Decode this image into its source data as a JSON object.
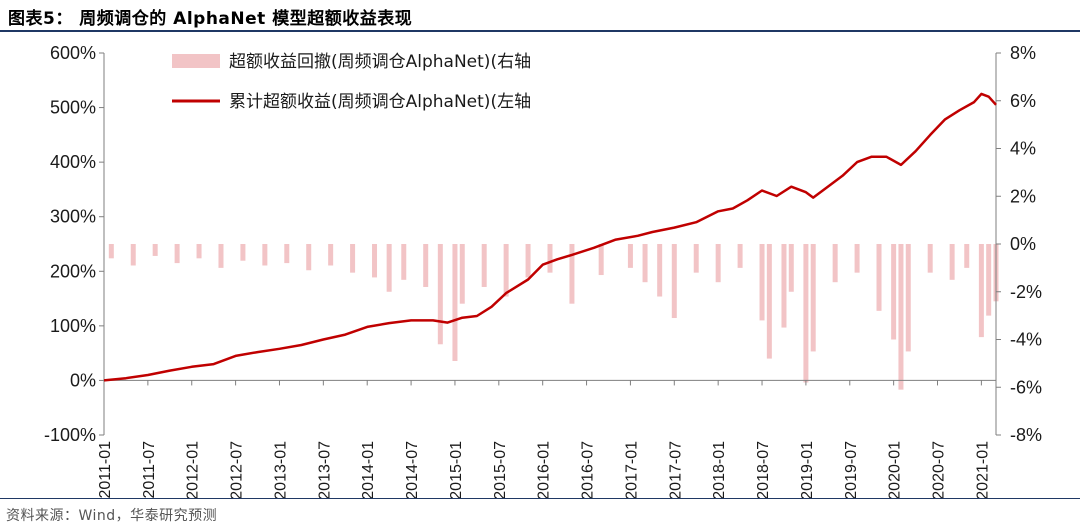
{
  "figure": {
    "title": "图表5：  周频调仓的 AlphaNet 模型超额收益表现",
    "source": "资料来源：Wind，华泰研究预测"
  },
  "colors": {
    "cumulative_line": "#c00000",
    "drawdown_bars": "#f2c4c6",
    "rules": "#1f3864"
  },
  "chart_data": {
    "type": "line",
    "left_axis": {
      "ylim": [
        -100,
        600
      ],
      "ticks": [
        -100,
        0,
        100,
        200,
        300,
        400,
        500,
        600
      ],
      "tick_labels": [
        "-100%",
        "0%",
        "100%",
        "200%",
        "300%",
        "400%",
        "500%",
        "600%"
      ]
    },
    "right_axis": {
      "ylim": [
        -8,
        8
      ],
      "ticks": [
        -8,
        -6,
        -4,
        -2,
        0,
        2,
        4,
        6,
        8
      ],
      "tick_labels": [
        "-8%",
        "-6%",
        "-4%",
        "-2%",
        "0%",
        "2%",
        "4%",
        "6%",
        "8%"
      ]
    },
    "x_ticks": [
      "2011-01",
      "2011-07",
      "2012-01",
      "2012-07",
      "2013-01",
      "2013-07",
      "2014-01",
      "2014-07",
      "2015-01",
      "2015-07",
      "2016-01",
      "2016-07",
      "2017-01",
      "2017-07",
      "2018-01",
      "2018-07",
      "2019-01",
      "2019-07",
      "2020-01",
      "2020-07",
      "2021-01"
    ],
    "x_range": [
      "2011-01",
      "2021-03"
    ],
    "legend": [
      "超额收益回撤(周频调仓AlphaNet)(右轴",
      "累计超额收益(周频调仓AlphaNet)(左轴"
    ],
    "legend_position": "top-left",
    "grid": false,
    "series": [
      {
        "name": "累计超额收益(周频调仓AlphaNet)(左轴",
        "axis": "left",
        "kind": "line",
        "points": [
          [
            "2011-01",
            0
          ],
          [
            "2011-04",
            4
          ],
          [
            "2011-07",
            10
          ],
          [
            "2011-10",
            18
          ],
          [
            "2012-01",
            25
          ],
          [
            "2012-04",
            30
          ],
          [
            "2012-07",
            45
          ],
          [
            "2012-10",
            52
          ],
          [
            "2013-01",
            58
          ],
          [
            "2013-04",
            65
          ],
          [
            "2013-07",
            75
          ],
          [
            "2013-10",
            84
          ],
          [
            "2014-01",
            98
          ],
          [
            "2014-04",
            105
          ],
          [
            "2014-07",
            110
          ],
          [
            "2014-10",
            110
          ],
          [
            "2014-12",
            106
          ],
          [
            "2015-02",
            115
          ],
          [
            "2015-04",
            118
          ],
          [
            "2015-06",
            135
          ],
          [
            "2015-08",
            160
          ],
          [
            "2015-11",
            185
          ],
          [
            "2016-01",
            212
          ],
          [
            "2016-03",
            222
          ],
          [
            "2016-05",
            230
          ],
          [
            "2016-08",
            243
          ],
          [
            "2016-11",
            258
          ],
          [
            "2017-02",
            265
          ],
          [
            "2017-04",
            272
          ],
          [
            "2017-07",
            280
          ],
          [
            "2017-10",
            290
          ],
          [
            "2018-01",
            310
          ],
          [
            "2018-03",
            315
          ],
          [
            "2018-05",
            330
          ],
          [
            "2018-07",
            348
          ],
          [
            "2018-09",
            338
          ],
          [
            "2018-11",
            355
          ],
          [
            "2019-01",
            345
          ],
          [
            "2019-02",
            335
          ],
          [
            "2019-04",
            355
          ],
          [
            "2019-06",
            375
          ],
          [
            "2019-08",
            400
          ],
          [
            "2019-10",
            410
          ],
          [
            "2019-12",
            410
          ],
          [
            "2020-02",
            395
          ],
          [
            "2020-04",
            420
          ],
          [
            "2020-06",
            450
          ],
          [
            "2020-08",
            478
          ],
          [
            "2020-10",
            495
          ],
          [
            "2020-12",
            510
          ],
          [
            "2021-01",
            525
          ],
          [
            "2021-02",
            520
          ],
          [
            "2021-03",
            505
          ]
        ]
      },
      {
        "name": "超额收益回撤(周频调仓AlphaNet)(右轴",
        "axis": "right",
        "kind": "bar",
        "points": [
          [
            "2011-02",
            -0.6
          ],
          [
            "2011-05",
            -0.9
          ],
          [
            "2011-08",
            -0.5
          ],
          [
            "2011-11",
            -0.8
          ],
          [
            "2012-02",
            -0.6
          ],
          [
            "2012-05",
            -1.0
          ],
          [
            "2012-08",
            -0.7
          ],
          [
            "2012-11",
            -0.9
          ],
          [
            "2013-02",
            -0.8
          ],
          [
            "2013-05",
            -1.1
          ],
          [
            "2013-08",
            -0.9
          ],
          [
            "2013-11",
            -1.2
          ],
          [
            "2014-02",
            -1.4
          ],
          [
            "2014-04",
            -2.0
          ],
          [
            "2014-06",
            -1.5
          ],
          [
            "2014-09",
            -1.8
          ],
          [
            "2014-11",
            -4.2
          ],
          [
            "2015-01",
            -4.9
          ],
          [
            "2015-02",
            -2.5
          ],
          [
            "2015-05",
            -1.8
          ],
          [
            "2015-08",
            -2.2
          ],
          [
            "2015-11",
            -1.4
          ],
          [
            "2016-02",
            -1.2
          ],
          [
            "2016-05",
            -2.5
          ],
          [
            "2016-09",
            -1.3
          ],
          [
            "2017-01",
            -1.0
          ],
          [
            "2017-03",
            -1.6
          ],
          [
            "2017-05",
            -2.2
          ],
          [
            "2017-07",
            -3.1
          ],
          [
            "2017-10",
            -1.2
          ],
          [
            "2018-01",
            -1.6
          ],
          [
            "2018-04",
            -1.0
          ],
          [
            "2018-07",
            -3.2
          ],
          [
            "2018-08",
            -4.8
          ],
          [
            "2018-10",
            -3.5
          ],
          [
            "2018-11",
            -2.0
          ],
          [
            "2019-01",
            -5.8
          ],
          [
            "2019-02",
            -4.5
          ],
          [
            "2019-05",
            -1.6
          ],
          [
            "2019-08",
            -1.2
          ],
          [
            "2019-11",
            -2.8
          ],
          [
            "2020-01",
            -4.0
          ],
          [
            "2020-02",
            -6.1
          ],
          [
            "2020-03",
            -4.5
          ],
          [
            "2020-06",
            -1.2
          ],
          [
            "2020-09",
            -1.5
          ],
          [
            "2020-11",
            -1.0
          ],
          [
            "2021-01",
            -3.9
          ],
          [
            "2021-02",
            -3.0
          ],
          [
            "2021-03",
            -2.4
          ]
        ]
      }
    ]
  }
}
